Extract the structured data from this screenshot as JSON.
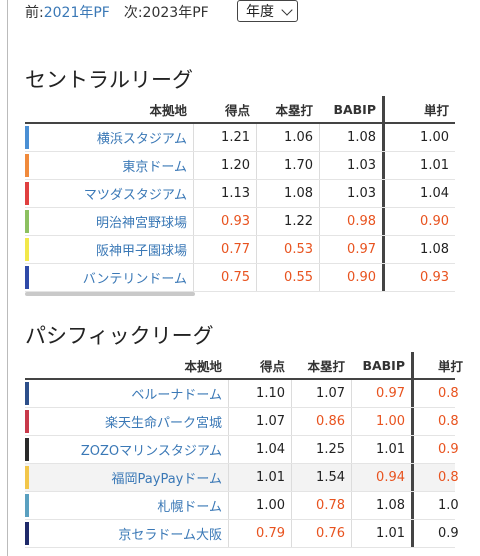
{
  "nav": {
    "prev_prefix": "前:",
    "prev_link": "2021年PF",
    "next_text": "次:2023年PF",
    "select_value": "年度"
  },
  "central": {
    "title": "セントラルリーグ",
    "headers": [
      "本拠地",
      "得点",
      "本塁打",
      "BABIP",
      "単打"
    ],
    "rows": [
      {
        "name": "横浜スタジアム",
        "color": "#4a8fd4",
        "score": "1.21",
        "hr": "1.06",
        "babip": "1.08",
        "single": "1.00",
        "red": []
      },
      {
        "name": "東京ドーム",
        "color": "#f08a3c",
        "score": "1.20",
        "hr": "1.70",
        "babip": "1.03",
        "single": "1.01",
        "red": []
      },
      {
        "name": "マツダスタジアム",
        "color": "#e04040",
        "score": "1.13",
        "hr": "1.08",
        "babip": "1.03",
        "single": "1.04",
        "red": []
      },
      {
        "name": "明治神宮野球場",
        "color": "#8cc060",
        "score": "0.93",
        "hr": "1.22",
        "babip": "0.98",
        "single": "0.90",
        "red": [
          "score",
          "babip",
          "single"
        ]
      },
      {
        "name": "阪神甲子園球場",
        "color": "#f2e84a",
        "score": "0.77",
        "hr": "0.53",
        "babip": "0.97",
        "single": "1.08",
        "red": [
          "score",
          "hr",
          "babip"
        ]
      },
      {
        "name": "バンテリンドーム",
        "color": "#2f4aa8",
        "score": "0.75",
        "hr": "0.55",
        "babip": "0.90",
        "single": "0.93",
        "red": [
          "score",
          "hr",
          "babip",
          "single"
        ]
      }
    ]
  },
  "pacific": {
    "title": "パシフィックリーグ",
    "headers": [
      "本拠地",
      "得点",
      "本塁打",
      "BABIP",
      "単打"
    ],
    "rows": [
      {
        "name": "ベルーナドーム",
        "color": "#2d4f8a",
        "score": "1.10",
        "hr": "1.07",
        "babip": "0.97",
        "single": "0.8",
        "red": [
          "babip",
          "single"
        ]
      },
      {
        "name": "楽天生命パーク宮城",
        "color": "#c8394a",
        "score": "1.07",
        "hr": "0.86",
        "babip": "1.00",
        "single": "0.8",
        "red": [
          "hr",
          "babip",
          "single"
        ]
      },
      {
        "name": "ZOZOマリンスタジアム",
        "color": "#2a2a2a",
        "score": "1.04",
        "hr": "1.25",
        "babip": "1.01",
        "single": "0.9",
        "red": [
          "single"
        ]
      },
      {
        "name": "福岡PayPayドーム",
        "color": "#f2c64a",
        "score": "1.01",
        "hr": "1.54",
        "babip": "0.94",
        "single": "0.8",
        "red": [
          "babip",
          "single"
        ]
      },
      {
        "name": "札幌ドーム",
        "color": "#5aa0c0",
        "score": "1.00",
        "hr": "0.78",
        "babip": "1.08",
        "single": "1.0",
        "red": [
          "hr"
        ]
      },
      {
        "name": "京セラドーム大阪",
        "color": "#1f2a6a",
        "score": "0.79",
        "hr": "0.76",
        "babip": "1.01",
        "single": "0.9",
        "red": [
          "score",
          "hr"
        ]
      }
    ]
  }
}
